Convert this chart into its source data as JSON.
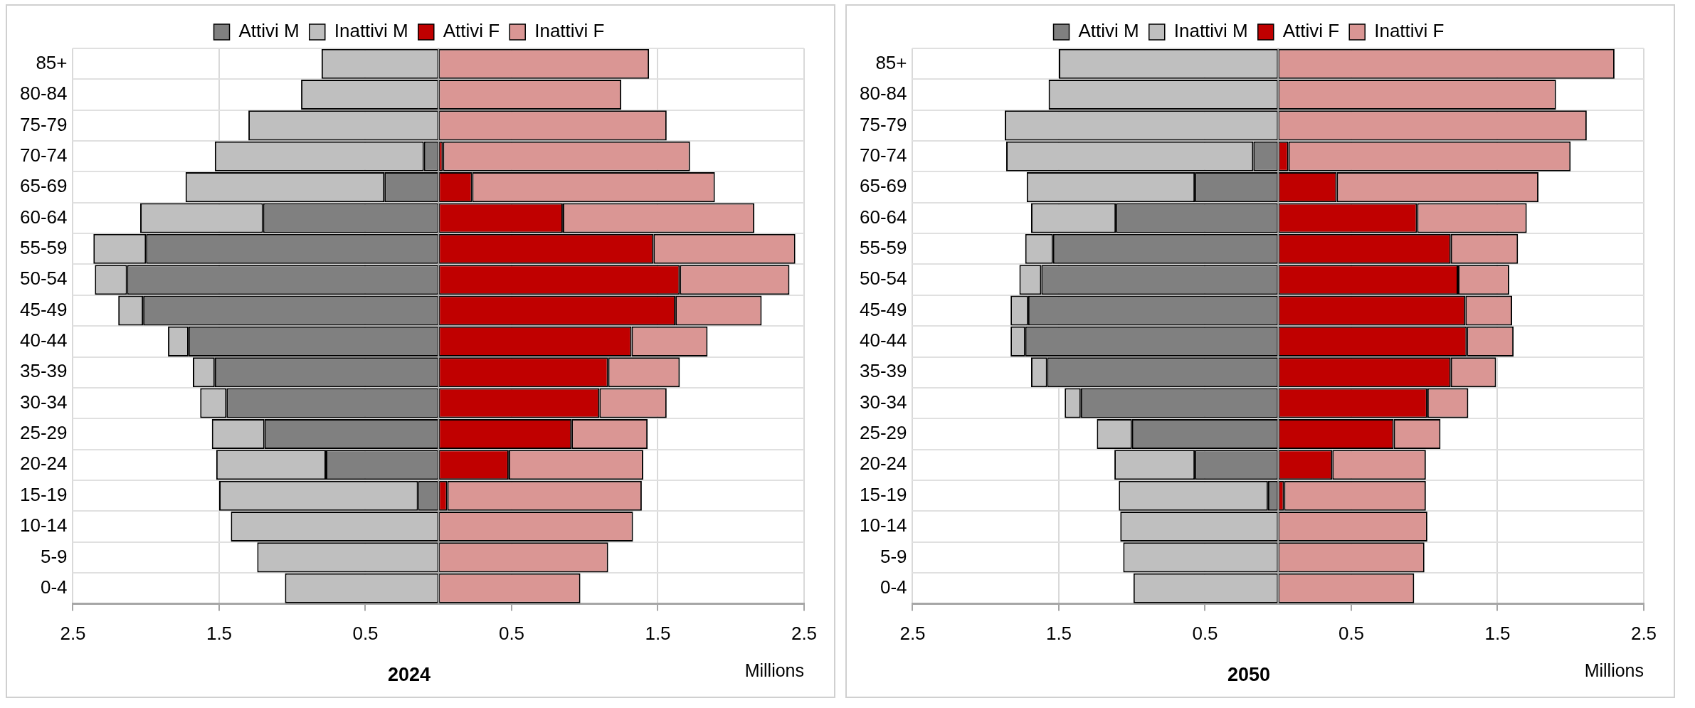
{
  "chart_data": [
    {
      "type": "bar",
      "orientation": "horizontal",
      "stacked": true,
      "title": "2024",
      "xlabel": "Millions",
      "legend": "top",
      "grid": true,
      "categories": [
        "85+",
        "80-84",
        "75-79",
        "70-74",
        "65-69",
        "60-64",
        "55-59",
        "50-54",
        "45-49",
        "40-44",
        "35-39",
        "30-34",
        "25-29",
        "20-24",
        "15-19",
        "10-14",
        "5-9",
        "0-4"
      ],
      "xlim": [
        -2.5,
        2.5
      ],
      "xticks": [
        {
          "value": -2.5,
          "label": "2.5"
        },
        {
          "value": -1.5,
          "label": "1.5"
        },
        {
          "value": -0.5,
          "label": "0.5"
        },
        0.5,
        1.5,
        2.5
      ],
      "series": [
        {
          "name": "Attivi M",
          "color": "#808080",
          "values": [
            null,
            null,
            null,
            -0.1,
            -0.37,
            -1.2,
            -2.0,
            -2.13,
            -2.02,
            -1.71,
            -1.53,
            -1.45,
            -1.19,
            -0.77,
            -0.14,
            null,
            null,
            null
          ]
        },
        {
          "name": "Inattivi M",
          "color": "#bfbfbf",
          "values": [
            -0.8,
            -0.94,
            -1.3,
            -1.43,
            -1.36,
            -0.84,
            -0.36,
            -0.22,
            -0.17,
            -0.14,
            -0.15,
            -0.18,
            -0.36,
            -0.75,
            -1.36,
            -1.42,
            -1.24,
            -1.05
          ]
        },
        {
          "name": "Attivi F",
          "color": "#c00000",
          "values": [
            null,
            null,
            null,
            0.03,
            0.23,
            0.85,
            1.47,
            1.65,
            1.62,
            1.32,
            1.16,
            1.1,
            0.91,
            0.48,
            0.06,
            null,
            null,
            null
          ]
        },
        {
          "name": "Inattivi F",
          "color": "#da9694",
          "values": [
            1.44,
            1.25,
            1.56,
            1.69,
            1.66,
            1.31,
            0.97,
            0.75,
            0.59,
            0.52,
            0.49,
            0.46,
            0.52,
            0.92,
            1.33,
            1.33,
            1.16,
            0.97
          ]
        }
      ]
    },
    {
      "type": "bar",
      "orientation": "horizontal",
      "stacked": true,
      "title": "2050",
      "xlabel": "Millions",
      "legend": "top",
      "grid": true,
      "categories": [
        "85+",
        "80-84",
        "75-79",
        "70-74",
        "65-69",
        "60-64",
        "55-59",
        "50-54",
        "45-49",
        "40-44",
        "35-39",
        "30-34",
        "25-29",
        "20-24",
        "15-19",
        "10-14",
        "5-9",
        "0-4"
      ],
      "xlim": [
        -2.5,
        2.5
      ],
      "xticks": [
        {
          "value": -2.5,
          "label": "2.5"
        },
        {
          "value": -1.5,
          "label": "1.5"
        },
        {
          "value": -0.5,
          "label": "0.5"
        },
        0.5,
        1.5,
        2.5
      ],
      "series": [
        {
          "name": "Attivi M",
          "color": "#808080",
          "values": [
            null,
            null,
            null,
            -0.17,
            -0.57,
            -1.11,
            -1.54,
            -1.62,
            -1.71,
            -1.73,
            -1.58,
            -1.35,
            -1.0,
            -0.57,
            -0.07,
            null,
            null,
            null
          ]
        },
        {
          "name": "Inattivi M",
          "color": "#bfbfbf",
          "values": [
            -1.5,
            -1.57,
            -1.87,
            -1.69,
            -1.15,
            -0.58,
            -0.19,
            -0.15,
            -0.12,
            -0.1,
            -0.11,
            -0.11,
            -0.24,
            -0.55,
            -1.02,
            -1.08,
            -1.06,
            -0.99
          ]
        },
        {
          "name": "Attivi F",
          "color": "#c00000",
          "values": [
            null,
            null,
            null,
            0.07,
            0.4,
            0.95,
            1.18,
            1.23,
            1.28,
            1.29,
            1.18,
            1.02,
            0.79,
            0.37,
            0.04,
            null,
            null,
            null
          ]
        },
        {
          "name": "Inattivi F",
          "color": "#da9694",
          "values": [
            2.3,
            1.9,
            2.11,
            1.93,
            1.38,
            0.75,
            0.46,
            0.35,
            0.32,
            0.32,
            0.31,
            0.28,
            0.32,
            0.64,
            0.97,
            1.02,
            1.0,
            0.93
          ]
        }
      ]
    }
  ]
}
